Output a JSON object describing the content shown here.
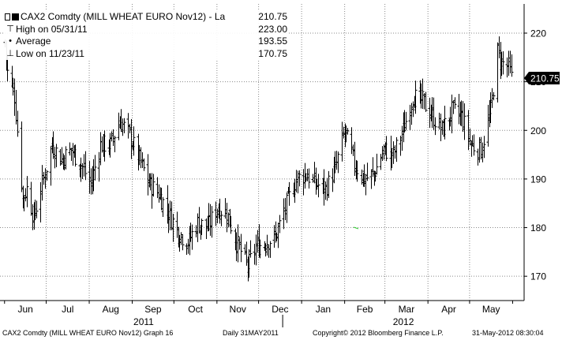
{
  "chart_data": {
    "type": "ohlc",
    "title": "CAX2 Comdty (MILL WHEAT EURO Nov12) - La",
    "last_value": 210.75,
    "last_label": "210.75",
    "legend": [
      {
        "symbol": "high-marker",
        "label": "High on 05/31/11",
        "value": "223.00"
      },
      {
        "symbol": "average-marker",
        "label": "Average",
        "value": "193.55"
      },
      {
        "symbol": "low-marker",
        "label": "Low on 11/23/11",
        "value": "170.75"
      }
    ],
    "y_axis": {
      "min": 165,
      "max": 226,
      "ticks": [
        170,
        180,
        190,
        200,
        210,
        220
      ],
      "position": "right"
    },
    "x_axis": {
      "months": [
        "Jun",
        "Jul",
        "Aug",
        "Sep",
        "Oct",
        "Nov",
        "Dec",
        "Jan",
        "Feb",
        "Mar",
        "Apr",
        "May"
      ],
      "years": [
        "2011",
        "2012"
      ]
    },
    "grid": true,
    "series_close_approx": [
      {
        "date": "2011-06-01",
        "value": 218
      },
      {
        "date": "2011-06-03",
        "value": 212
      },
      {
        "date": "2011-06-08",
        "value": 207
      },
      {
        "date": "2011-06-14",
        "value": 186
      },
      {
        "date": "2011-06-17",
        "value": 188
      },
      {
        "date": "2011-06-22",
        "value": 182
      },
      {
        "date": "2011-06-28",
        "value": 189
      },
      {
        "date": "2011-07-05",
        "value": 197
      },
      {
        "date": "2011-07-12",
        "value": 194
      },
      {
        "date": "2011-07-19",
        "value": 196
      },
      {
        "date": "2011-07-26",
        "value": 193
      },
      {
        "date": "2011-08-02",
        "value": 189
      },
      {
        "date": "2011-08-09",
        "value": 197
      },
      {
        "date": "2011-08-16",
        "value": 197
      },
      {
        "date": "2011-08-23",
        "value": 202
      },
      {
        "date": "2011-08-30",
        "value": 199
      },
      {
        "date": "2011-09-06",
        "value": 194
      },
      {
        "date": "2011-09-13",
        "value": 189
      },
      {
        "date": "2011-09-20",
        "value": 187
      },
      {
        "date": "2011-09-27",
        "value": 183
      },
      {
        "date": "2011-10-04",
        "value": 179
      },
      {
        "date": "2011-10-11",
        "value": 177
      },
      {
        "date": "2011-10-18",
        "value": 181
      },
      {
        "date": "2011-10-25",
        "value": 180
      },
      {
        "date": "2011-11-01",
        "value": 184
      },
      {
        "date": "2011-11-08",
        "value": 183
      },
      {
        "date": "2011-11-15",
        "value": 177
      },
      {
        "date": "2011-11-23",
        "value": 172
      },
      {
        "date": "2011-11-29",
        "value": 176
      },
      {
        "date": "2011-12-06",
        "value": 177
      },
      {
        "date": "2011-12-13",
        "value": 178
      },
      {
        "date": "2011-12-20",
        "value": 184
      },
      {
        "date": "2011-12-28",
        "value": 190
      },
      {
        "date": "2012-01-04",
        "value": 191
      },
      {
        "date": "2012-01-11",
        "value": 189
      },
      {
        "date": "2012-01-18",
        "value": 188
      },
      {
        "date": "2012-01-25",
        "value": 192
      },
      {
        "date": "2012-02-01",
        "value": 200
      },
      {
        "date": "2012-02-08",
        "value": 193
      },
      {
        "date": "2012-02-15",
        "value": 190
      },
      {
        "date": "2012-02-22",
        "value": 191
      },
      {
        "date": "2012-02-29",
        "value": 196
      },
      {
        "date": "2012-03-07",
        "value": 195
      },
      {
        "date": "2012-03-14",
        "value": 200
      },
      {
        "date": "2012-03-21",
        "value": 207
      },
      {
        "date": "2012-03-28",
        "value": 206
      },
      {
        "date": "2012-04-04",
        "value": 203
      },
      {
        "date": "2012-04-11",
        "value": 200
      },
      {
        "date": "2012-04-18",
        "value": 204
      },
      {
        "date": "2012-04-25",
        "value": 203
      },
      {
        "date": "2012-05-02",
        "value": 197
      },
      {
        "date": "2012-05-09",
        "value": 196
      },
      {
        "date": "2012-05-16",
        "value": 204
      },
      {
        "date": "2012-05-21",
        "value": 216
      },
      {
        "date": "2012-05-24",
        "value": 214
      },
      {
        "date": "2012-05-29",
        "value": 213
      },
      {
        "date": "2012-05-31",
        "value": 210.75
      }
    ]
  },
  "footer": {
    "left": "CAX2 Comdty (MILL WHEAT EURO  Nov12) Graph 16",
    "center": "Daily 31MAY2011",
    "copyright": "Copyright© 2012 Bloomberg Finance L.P.",
    "timestamp": "31-May-2012 08:30:04"
  },
  "colors": {
    "price_bars": "#000000",
    "grid": "#8a8a8a",
    "last_badge_bg": "#000000",
    "last_badge_text": "#ffffff",
    "stray_mark": "#33cc33"
  }
}
